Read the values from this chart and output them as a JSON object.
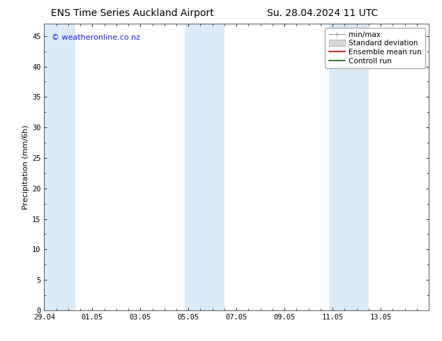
{
  "title_left": "ENS Time Series Auckland Airport",
  "title_right": "Su. 28.04.2024 11 UTC",
  "ylabel": "Precipitation (mm/6h)",
  "xlim_start": 0,
  "xlim_end": 16,
  "ylim": [
    0,
    47
  ],
  "yticks": [
    0,
    5,
    10,
    15,
    20,
    25,
    30,
    35,
    40,
    45
  ],
  "xtick_labels": [
    "29.04",
    "01.05",
    "03.05",
    "05.05",
    "07.05",
    "09.05",
    "11.05",
    "13.05"
  ],
  "xtick_positions": [
    0,
    2,
    4,
    6,
    8,
    10,
    12,
    14
  ],
  "watermark": "© weatheronline.co.nz",
  "bg_color": "#ffffff",
  "plot_bg_color": "#ffffff",
  "shaded_color": "#daeaf7",
  "shaded_regions": [
    {
      "x_start": -0.1,
      "x_end": 1.3
    },
    {
      "x_start": 5.85,
      "x_end": 7.5
    },
    {
      "x_start": 11.85,
      "x_end": 13.5
    }
  ],
  "title_fontsize": 10,
  "tick_fontsize": 7.5,
  "legend_fontsize": 7.5,
  "ylabel_fontsize": 8,
  "watermark_color": "#1a1aff",
  "watermark_fontsize": 8
}
